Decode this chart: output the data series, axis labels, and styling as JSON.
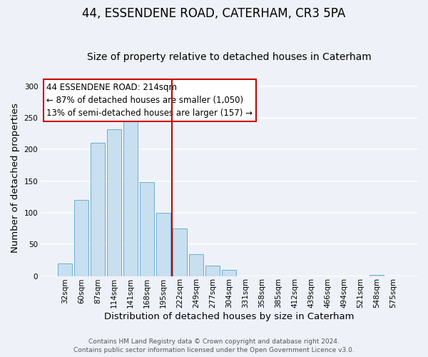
{
  "title": "44, ESSENDENE ROAD, CATERHAM, CR3 5PA",
  "subtitle": "Size of property relative to detached houses in Caterham",
  "xlabel": "Distribution of detached houses by size in Caterham",
  "ylabel": "Number of detached properties",
  "bar_labels": [
    "32sqm",
    "60sqm",
    "87sqm",
    "114sqm",
    "141sqm",
    "168sqm",
    "195sqm",
    "222sqm",
    "249sqm",
    "277sqm",
    "304sqm",
    "331sqm",
    "358sqm",
    "385sqm",
    "412sqm",
    "439sqm",
    "466sqm",
    "494sqm",
    "521sqm",
    "548sqm",
    "575sqm"
  ],
  "bar_values": [
    20,
    120,
    210,
    232,
    250,
    148,
    100,
    75,
    35,
    16,
    10,
    0,
    0,
    0,
    0,
    0,
    0,
    0,
    0,
    2,
    0
  ],
  "bar_color": "#c8dff0",
  "bar_edgecolor": "#6aaed6",
  "vline_color": "#cc0000",
  "ylim": [
    0,
    310
  ],
  "yticks": [
    0,
    50,
    100,
    150,
    200,
    250,
    300
  ],
  "annotation_title": "44 ESSENDENE ROAD: 214sqm",
  "annotation_line1": "← 87% of detached houses are smaller (1,050)",
  "annotation_line2": "13% of semi-detached houses are larger (157) →",
  "footer1": "Contains HM Land Registry data © Crown copyright and database right 2024.",
  "footer2": "Contains public sector information licensed under the Open Government Licence v3.0.",
  "background_color": "#eef2f8",
  "plot_bg_color": "#eef2f8",
  "grid_color": "#ffffff",
  "title_fontsize": 12,
  "subtitle_fontsize": 10,
  "axis_label_fontsize": 9.5,
  "tick_fontsize": 7.5,
  "annotation_fontsize": 8.5,
  "footer_fontsize": 6.5
}
